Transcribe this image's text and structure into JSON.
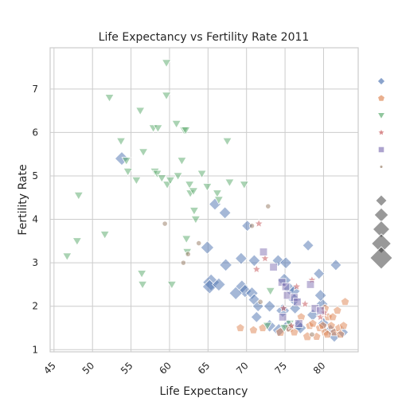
{
  "chart_data": {
    "type": "scatter",
    "title": "Life Expectancy vs Fertility Rate 2011",
    "xlabel": "Life Expectancy",
    "ylabel": "Fertility Rate",
    "xlim": [
      44.5,
      84.5
    ],
    "ylim": [
      0.95,
      7.95
    ],
    "xticks": [
      45,
      50,
      55,
      60,
      65,
      70,
      75,
      80
    ],
    "yticks": [
      1,
      2,
      3,
      4,
      5,
      6,
      7
    ],
    "grid": true,
    "legend_placement": "right",
    "size_legend": [
      20,
      25,
      30,
      35,
      40
    ],
    "series": [
      {
        "marker": "diamond",
        "color": "#4c72b0",
        "points": [
          [
            53.8,
            5.4,
            24
          ],
          [
            65.9,
            4.35,
            18
          ],
          [
            67.2,
            4.15,
            18
          ],
          [
            64.9,
            3.35,
            22
          ],
          [
            67.3,
            2.95,
            20
          ],
          [
            69.3,
            3.1,
            18
          ],
          [
            70.1,
            3.85,
            16
          ],
          [
            71.0,
            3.05,
            18
          ],
          [
            74.1,
            3.05,
            18
          ],
          [
            75.1,
            3.0,
            18
          ],
          [
            78.0,
            3.4,
            16
          ],
          [
            81.6,
            2.95,
            16
          ],
          [
            79.4,
            2.75,
            16
          ],
          [
            65.4,
            2.55,
            36
          ],
          [
            65.2,
            2.45,
            26
          ],
          [
            66.4,
            2.5,
            22
          ],
          [
            69.4,
            2.45,
            22
          ],
          [
            69.8,
            2.35,
            22
          ],
          [
            70.7,
            2.3,
            20
          ],
          [
            68.6,
            2.3,
            22
          ],
          [
            71.0,
            2.15,
            18
          ],
          [
            71.5,
            2.0,
            16
          ],
          [
            71.3,
            1.75,
            16
          ],
          [
            73.0,
            2.0,
            18
          ],
          [
            74.9,
            2.6,
            24
          ],
          [
            75.6,
            2.4,
            20
          ],
          [
            76.2,
            2.35,
            18
          ],
          [
            73.0,
            1.55,
            20
          ],
          [
            74.2,
            1.45,
            22
          ],
          [
            74.7,
            1.9,
            24
          ],
          [
            75.4,
            1.55,
            22
          ],
          [
            76.7,
            1.55,
            20
          ],
          [
            77.0,
            1.5,
            18
          ],
          [
            78.6,
            1.8,
            18
          ],
          [
            79.8,
            2.05,
            18
          ],
          [
            80.0,
            1.6,
            18
          ],
          [
            80.9,
            1.45,
            18
          ],
          [
            81.4,
            1.3,
            16
          ],
          [
            82.5,
            1.4,
            16
          ],
          [
            79.6,
            2.25,
            18
          ],
          [
            76.3,
            1.95,
            16
          ],
          [
            76.2,
            2.15,
            20
          ]
        ]
      },
      {
        "marker": "pentagon",
        "color": "#dd8452",
        "points": [
          [
            69.2,
            1.5,
            10
          ],
          [
            70.9,
            1.45,
            10
          ],
          [
            72.1,
            1.5,
            10
          ],
          [
            74.4,
            1.4,
            12
          ],
          [
            75.6,
            1.5,
            12
          ],
          [
            76.2,
            1.4,
            10
          ],
          [
            77.9,
            1.3,
            12
          ],
          [
            78.2,
            1.55,
            10
          ],
          [
            79.1,
            1.3,
            10
          ],
          [
            79.5,
            1.5,
            10
          ],
          [
            79.9,
            1.55,
            10
          ],
          [
            80.2,
            1.4,
            10
          ],
          [
            80.6,
            1.75,
            10
          ],
          [
            81.0,
            1.55,
            10
          ],
          [
            81.4,
            1.4,
            10
          ],
          [
            81.8,
            1.9,
            10
          ],
          [
            82.0,
            1.5,
            10
          ],
          [
            82.6,
            1.55,
            10
          ],
          [
            82.8,
            2.1,
            10
          ],
          [
            80.2,
            1.95,
            10
          ],
          [
            81.2,
            1.75,
            10
          ],
          [
            78.6,
            1.6,
            10
          ],
          [
            80.5,
            1.35,
            10
          ],
          [
            82.2,
            1.35,
            10
          ],
          [
            77.1,
            1.75,
            10
          ]
        ]
      },
      {
        "marker": "triangle-down",
        "color": "#55a868",
        "points": [
          [
            46.7,
            3.15,
            10
          ],
          [
            48.0,
            3.5,
            10
          ],
          [
            48.2,
            4.55,
            10
          ],
          [
            51.6,
            3.65,
            10
          ],
          [
            52.2,
            6.8,
            10
          ],
          [
            53.7,
            5.8,
            10
          ],
          [
            54.4,
            5.35,
            10
          ],
          [
            54.6,
            5.1,
            10
          ],
          [
            55.7,
            4.9,
            10
          ],
          [
            56.2,
            6.5,
            10
          ],
          [
            56.6,
            5.55,
            10
          ],
          [
            56.4,
            2.75,
            10
          ],
          [
            56.5,
            2.5,
            10
          ],
          [
            57.9,
            6.1,
            10
          ],
          [
            58.1,
            5.1,
            10
          ],
          [
            58.4,
            5.05,
            10
          ],
          [
            58.5,
            6.1,
            10
          ],
          [
            59.0,
            4.95,
            10
          ],
          [
            59.6,
            7.6,
            10
          ],
          [
            59.6,
            6.85,
            10
          ],
          [
            59.7,
            4.8,
            10
          ],
          [
            60.1,
            4.9,
            10
          ],
          [
            60.3,
            2.5,
            10
          ],
          [
            60.9,
            6.2,
            10
          ],
          [
            61.1,
            5.0,
            10
          ],
          [
            61.6,
            5.35,
            10
          ],
          [
            61.9,
            6.05,
            10
          ],
          [
            62.1,
            6.05,
            10
          ],
          [
            62.6,
            4.8,
            10
          ],
          [
            62.7,
            4.6,
            10
          ],
          [
            62.2,
            3.55,
            10
          ],
          [
            62.3,
            3.25,
            10
          ],
          [
            63.1,
            4.65,
            10
          ],
          [
            63.2,
            4.2,
            10
          ],
          [
            63.4,
            4.0,
            10
          ],
          [
            64.2,
            5.05,
            10
          ],
          [
            64.9,
            4.75,
            10
          ],
          [
            66.2,
            4.6,
            10
          ],
          [
            66.4,
            4.45,
            10
          ],
          [
            67.8,
            4.85,
            10
          ],
          [
            67.5,
            5.8,
            10
          ],
          [
            69.7,
            4.8,
            10
          ],
          [
            72.7,
            1.55,
            10
          ],
          [
            73.1,
            2.35,
            10
          ],
          [
            74.9,
            1.5,
            10
          ],
          [
            75.6,
            1.6,
            10
          ]
        ]
      },
      {
        "marker": "star",
        "color": "#c44e52",
        "points": [
          [
            71.6,
            3.9,
            10
          ],
          [
            72.4,
            3.1,
            10
          ],
          [
            71.3,
            2.85,
            10
          ],
          [
            74.8,
            1.95,
            10
          ],
          [
            75.8,
            1.55,
            10
          ],
          [
            77.6,
            2.05,
            10
          ],
          [
            78.5,
            2.6,
            10
          ],
          [
            79.6,
            1.75,
            10
          ],
          [
            80.1,
            1.85,
            10
          ],
          [
            76.5,
            2.45,
            10
          ]
        ]
      },
      {
        "marker": "square",
        "color": "#8172b3",
        "points": [
          [
            72.2,
            3.25,
            12
          ],
          [
            73.5,
            2.9,
            12
          ],
          [
            74.6,
            2.55,
            12
          ],
          [
            75.1,
            2.45,
            12
          ],
          [
            75.3,
            2.25,
            12
          ],
          [
            76.2,
            2.2,
            12
          ],
          [
            76.6,
            2.1,
            12
          ],
          [
            78.3,
            2.5,
            12
          ],
          [
            78.9,
            1.95,
            12
          ],
          [
            79.6,
            1.9,
            12
          ],
          [
            74.7,
            1.75,
            12
          ],
          [
            76.8,
            1.6,
            12
          ]
        ]
      },
      {
        "marker": "circle",
        "color": "#937860",
        "points": [
          [
            59.4,
            3.9,
            6
          ],
          [
            61.8,
            3.0,
            6
          ],
          [
            62.4,
            3.2,
            6
          ],
          [
            63.8,
            3.45,
            6
          ],
          [
            70.7,
            3.85,
            6
          ],
          [
            72.8,
            4.3,
            6
          ],
          [
            71.8,
            2.1,
            6
          ],
          [
            78.5,
            1.35,
            6
          ]
        ]
      }
    ]
  }
}
